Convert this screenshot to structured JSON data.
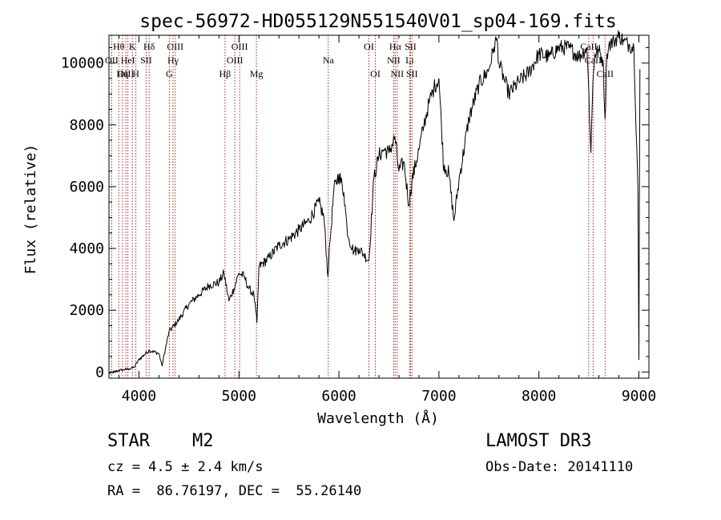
{
  "chart_data": {
    "type": "line",
    "title": "spec-56972-HD055129N551540V01_sp04-169.fits",
    "xlabel": "Wavelength (Å)",
    "ylabel": "Flux (relative)",
    "xlim": [
      3700,
      9100
    ],
    "ylim": [
      -200,
      10900
    ],
    "xticks": [
      4000,
      5000,
      6000,
      7000,
      8000,
      9000
    ],
    "yticks": [
      0,
      2000,
      4000,
      6000,
      8000,
      10000
    ],
    "series": [
      {
        "name": "spectrum",
        "x": [
          3700,
          3800,
          3900,
          3950,
          4000,
          4100,
          4200,
          4230,
          4300,
          4400,
          4500,
          4600,
          4700,
          4800,
          4850,
          4900,
          4950,
          5000,
          5050,
          5100,
          5150,
          5180,
          5200,
          5300,
          5400,
          5500,
          5600,
          5700,
          5800,
          5850,
          5890,
          5910,
          5950,
          6000,
          6050,
          6080,
          6100,
          6150,
          6200,
          6250,
          6300,
          6350,
          6400,
          6450,
          6500,
          6560,
          6600,
          6650,
          6700,
          6730,
          6800,
          6850,
          6900,
          6950,
          7000,
          7050,
          7055,
          7100,
          7150,
          7200,
          7300,
          7400,
          7500,
          7550,
          7580,
          7600,
          7650,
          7700,
          7800,
          7900,
          8000,
          8100,
          8200,
          8300,
          8400,
          8480,
          8500,
          8520,
          8540,
          8560,
          8600,
          8640,
          8662,
          8680,
          8700,
          8750,
          8800,
          8850,
          8900,
          8950,
          8990,
          9000,
          9010
        ],
        "y": [
          -50,
          50,
          100,
          150,
          400,
          700,
          600,
          200,
          1300,
          1700,
          2200,
          2500,
          2800,
          2900,
          3200,
          2300,
          2700,
          3200,
          3100,
          2700,
          2500,
          1600,
          3400,
          3700,
          4100,
          4300,
          4600,
          4900,
          5500,
          5000,
          3100,
          4200,
          5900,
          6400,
          5800,
          4700,
          4300,
          3900,
          4000,
          3800,
          3600,
          6300,
          7000,
          7200,
          7100,
          7600,
          6500,
          6800,
          5400,
          6200,
          7200,
          8000,
          8700,
          9200,
          9500,
          6500,
          6700,
          6400,
          4900,
          6200,
          8200,
          9300,
          9800,
          10500,
          10800,
          10000,
          9500,
          9000,
          9400,
          9700,
          10300,
          10200,
          10500,
          10500,
          10200,
          10500,
          9000,
          7100,
          9400,
          10300,
          10400,
          10100,
          8200,
          10300,
          10600,
          10700,
          10900,
          10700,
          10600,
          10500,
          6000,
          400,
          9800
        ]
      }
    ],
    "lines": [
      {
        "name": "Hθ",
        "x": 3798,
        "row": 1
      },
      {
        "name": "OII",
        "x": 3727,
        "row": 2
      },
      {
        "name": "OIII",
        "x": 3869,
        "row": 3
      },
      {
        "name": "HeI",
        "x": 3889,
        "row": 2
      },
      {
        "name": "Hη",
        "x": 3835,
        "row": 3
      },
      {
        "name": "K",
        "x": 3934,
        "row": 1
      },
      {
        "name": "H",
        "x": 3969,
        "row": 3
      },
      {
        "name": "SII",
        "x": 4072,
        "row": 2
      },
      {
        "name": "Hδ",
        "x": 4102,
        "row": 1
      },
      {
        "name": "OIII",
        "x": 4363,
        "row": 1
      },
      {
        "name": "Hγ",
        "x": 4341,
        "row": 2
      },
      {
        "name": "G",
        "x": 4304,
        "row": 3
      },
      {
        "name": "Hβ",
        "x": 4861,
        "row": 3
      },
      {
        "name": "OIII",
        "x": 5007,
        "row": 1
      },
      {
        "name": "OIII",
        "x": 4959,
        "row": 2
      },
      {
        "name": "Mg",
        "x": 5175,
        "row": 3
      },
      {
        "name": "Na",
        "x": 5893,
        "row": 2
      },
      {
        "name": "OI",
        "x": 6300,
        "row": 1
      },
      {
        "name": "OI",
        "x": 6364,
        "row": 3
      },
      {
        "name": "Hα",
        "x": 6563,
        "row": 1
      },
      {
        "name": "NII",
        "x": 6548,
        "row": 2
      },
      {
        "name": "NII",
        "x": 6583,
        "row": 3
      },
      {
        "name": "SII",
        "x": 6716,
        "row": 1
      },
      {
        "name": "Li",
        "x": 6708,
        "row": 2
      },
      {
        "name": "SII",
        "x": 6731,
        "row": 3
      },
      {
        "name": "CaII",
        "x": 8498,
        "row": 1
      },
      {
        "name": "CaII",
        "x": 8542,
        "row": 2
      },
      {
        "name": "CaII",
        "x": 8662,
        "row": 3
      }
    ]
  },
  "info": {
    "object_type": "STAR",
    "subclass": "M2",
    "survey": "LAMOST DR3",
    "cz": "cz = 4.5 ± 2.4 km/s",
    "obs_date": "Obs-Date: 20141110",
    "radec": "RA =  86.76197, DEC =  55.26140"
  },
  "colors": {
    "axis": "#000000",
    "spectrum": "#000000",
    "line_marker": "#b22222"
  }
}
